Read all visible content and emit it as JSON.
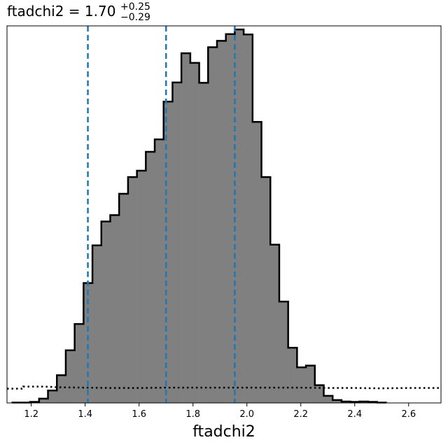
{
  "chart_data": {
    "type": "histogram",
    "title": {
      "param": "ftadchi2",
      "equals": " = ",
      "value": "1.70",
      "upper_err": "+0.25",
      "lower_err": "−0.29"
    },
    "xlabel": "ftadchi2",
    "ylabel": "",
    "xlim": [
      1.11,
      2.72
    ],
    "ylim": [
      0,
      1.06
    ],
    "xticks": [
      "1.2",
      "1.4",
      "1.6",
      "1.8",
      "2.0",
      "2.2",
      "2.4",
      "2.6"
    ],
    "xtick_values": [
      1.2,
      1.4,
      1.6,
      1.8,
      2.0,
      2.2,
      2.4,
      2.6
    ],
    "grid": false,
    "bin_edges": [
      1.13,
      1.163,
      1.196,
      1.229,
      1.262,
      1.295,
      1.328,
      1.361,
      1.394,
      1.427,
      1.46,
      1.493,
      1.526,
      1.559,
      1.592,
      1.625,
      1.658,
      1.691,
      1.724,
      1.757,
      1.79,
      1.823,
      1.856,
      1.889,
      1.922,
      1.955,
      1.988,
      2.021,
      2.054,
      2.087,
      2.12,
      2.153,
      2.186,
      2.219,
      2.252,
      2.285,
      2.318,
      2.351,
      2.384,
      2.417,
      2.45,
      2.483,
      2.516
    ],
    "counts": [
      0.001,
      0.001,
      0.003,
      0.012,
      0.035,
      0.078,
      0.148,
      0.222,
      0.337,
      0.443,
      0.51,
      0.528,
      0.588,
      0.635,
      0.653,
      0.706,
      0.741,
      0.847,
      0.901,
      0.983,
      0.956,
      0.9,
      1.0,
      1.018,
      1.037,
      1.05,
      1.036,
      0.79,
      0.635,
      0.445,
      0.285,
      0.155,
      0.1,
      0.105,
      0.05,
      0.02,
      0.008,
      0.004,
      0.003,
      0.004,
      0.003,
      0.001
    ],
    "hist_fill": "#808080",
    "hist_edge": "#000000",
    "quantiles": [
      1.41,
      1.7,
      1.955
    ],
    "quantile_color": "#1f77b4",
    "prior": {
      "style": "dotted",
      "color": "#000000",
      "x": [
        1.11,
        1.17,
        1.17,
        1.25,
        1.3,
        1.4,
        1.5,
        1.6,
        1.7,
        1.8,
        1.9,
        2.0,
        2.1,
        2.2,
        2.3,
        2.4,
        2.5,
        2.6,
        2.72
      ],
      "y": [
        0.04,
        0.04,
        0.046,
        0.046,
        0.044,
        0.043,
        0.042,
        0.042,
        0.043,
        0.043,
        0.043,
        0.043,
        0.043,
        0.043,
        0.042,
        0.042,
        0.041,
        0.042,
        0.042
      ]
    }
  }
}
